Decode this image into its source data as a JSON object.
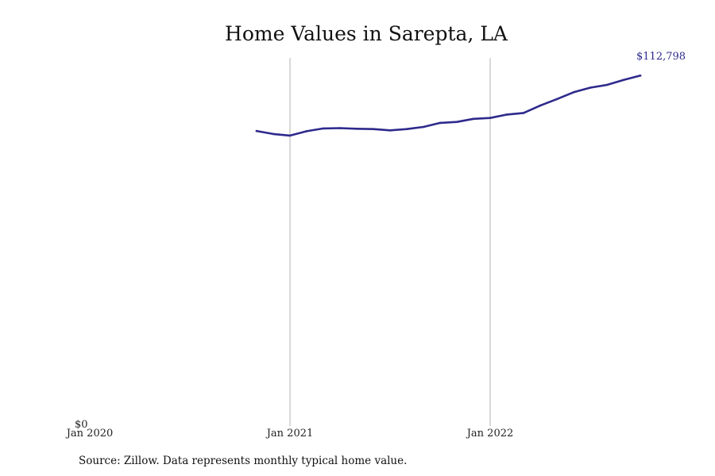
{
  "chart_data": {
    "type": "line",
    "title": "Home Values in Sarepta, LA",
    "xlabel": "",
    "ylabel": "",
    "x_ticks": [
      {
        "date": "2020-01",
        "label": "Jan 2020"
      },
      {
        "date": "2021-01",
        "label": "Jan 2021"
      },
      {
        "date": "2022-01",
        "label": "Jan 2022"
      }
    ],
    "x_range": [
      "2020-01",
      "2022-12"
    ],
    "y_ticks": [
      {
        "value": 0,
        "label": "$0"
      }
    ],
    "ylim": [
      0,
      118000
    ],
    "grid": "vertical",
    "series": [
      {
        "color": "#2e2a8c",
        "points": [
          {
            "date": "2020-11",
            "value": 94900
          },
          {
            "date": "2020-12",
            "value": 93900
          },
          {
            "date": "2021-01",
            "value": 93400
          },
          {
            "date": "2021-02",
            "value": 94800
          },
          {
            "date": "2021-03",
            "value": 95700
          },
          {
            "date": "2021-04",
            "value": 95800
          },
          {
            "date": "2021-05",
            "value": 95600
          },
          {
            "date": "2021-06",
            "value": 95500
          },
          {
            "date": "2021-07",
            "value": 95100
          },
          {
            "date": "2021-08",
            "value": 95500
          },
          {
            "date": "2021-09",
            "value": 96200
          },
          {
            "date": "2021-10",
            "value": 97500
          },
          {
            "date": "2021-11",
            "value": 97800
          },
          {
            "date": "2021-12",
            "value": 98800
          },
          {
            "date": "2022-01",
            "value": 99100
          },
          {
            "date": "2022-02",
            "value": 100200
          },
          {
            "date": "2022-03",
            "value": 100700
          },
          {
            "date": "2022-04",
            "value": 103100
          },
          {
            "date": "2022-05",
            "value": 105200
          },
          {
            "date": "2022-06",
            "value": 107400
          },
          {
            "date": "2022-07",
            "value": 108900
          },
          {
            "date": "2022-08",
            "value": 109800
          },
          {
            "date": "2022-09",
            "value": 111400
          },
          {
            "date": "2022-10",
            "value": 112798
          }
        ]
      }
    ],
    "end_label": "$112,798",
    "source_note": "Source: Zillow. Data represents monthly typical home value."
  }
}
